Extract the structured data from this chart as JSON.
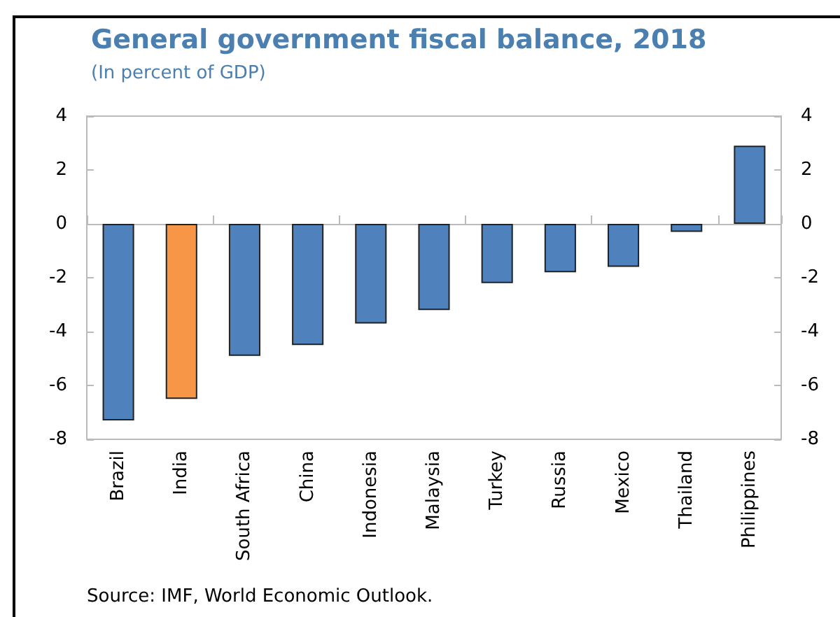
{
  "chart_data": {
    "type": "bar",
    "title": "General government fiscal balance, 2018",
    "subtitle": "(In percent of GDP)",
    "categories": [
      "Brazil",
      "India",
      "South Africa",
      "China",
      "Indonesia",
      "Malaysia",
      "Turkey",
      "Russia",
      "Mexico",
      "Thailand",
      "Philippines"
    ],
    "values": [
      -7.3,
      -6.5,
      -4.9,
      -4.5,
      -3.7,
      -3.2,
      -2.2,
      -1.8,
      -1.6,
      -0.3,
      2.9
    ],
    "colors": [
      "#4f81bd",
      "#f79646",
      "#4f81bd",
      "#4f81bd",
      "#4f81bd",
      "#4f81bd",
      "#4f81bd",
      "#4f81bd",
      "#4f81bd",
      "#4f81bd",
      "#4f81bd"
    ],
    "ylim": [
      -8,
      4
    ],
    "yticks": [
      -8,
      -6,
      -4,
      -2,
      0,
      2,
      4
    ],
    "y2lim": [
      -8,
      4
    ],
    "y2ticks": [
      -8,
      -6,
      -4,
      -2,
      0,
      2,
      4
    ],
    "annotations": [
      "Source: IMF, World Economic Outlook."
    ]
  }
}
